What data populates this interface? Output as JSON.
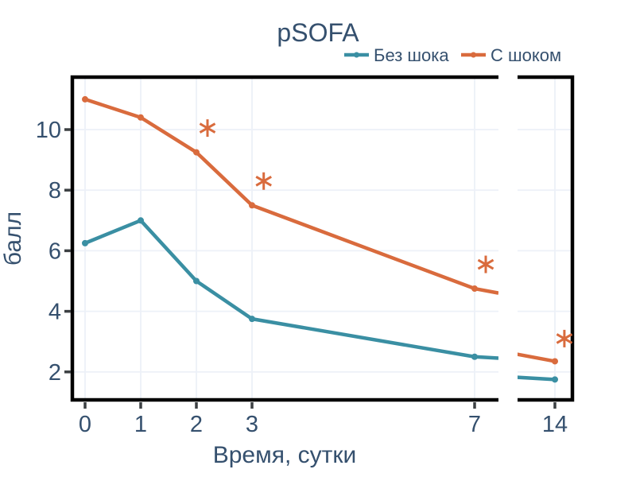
{
  "chart_data": {
    "type": "line",
    "title": "pSOFA",
    "xlabel": "Время, сутки",
    "ylabel": "балл",
    "x": [
      0,
      1,
      2,
      3,
      7,
      14
    ],
    "x_tick_labels": [
      "0",
      "1",
      "2",
      "3",
      "7",
      "14"
    ],
    "y_ticks": [
      2,
      4,
      6,
      8,
      10
    ],
    "y_tick_labels": [
      "2",
      "4",
      "6",
      "8",
      "10"
    ],
    "ylim": [
      1.1,
      11.8
    ],
    "grid": true,
    "legend_position": "top-right",
    "axis_break": {
      "between": [
        7,
        14
      ]
    },
    "series": [
      {
        "name": "Без шока",
        "color": "#3a8fa3",
        "values": [
          6.25,
          7.0,
          5.0,
          3.75,
          2.5,
          1.75
        ]
      },
      {
        "name": "С шоком",
        "color": "#d96b3d",
        "values": [
          11.0,
          10.4,
          9.25,
          7.5,
          4.75,
          2.35
        ]
      }
    ],
    "annotations": [
      {
        "marker": "asterisk",
        "x": 2.2,
        "y": 10.05
      },
      {
        "marker": "asterisk",
        "x": 3.21,
        "y": 8.3
      },
      {
        "marker": "asterisk",
        "x": 7.2,
        "y": 5.55
      },
      {
        "marker": "asterisk",
        "x": 14.17,
        "y": 3.1
      }
    ]
  },
  "theme": {
    "text_color": "#35506e",
    "grid_color": "#edf1f8",
    "axis_color": "#000000",
    "tick_color": "#3c4043",
    "annotation_color": "#d96b3d",
    "background": "#ffffff"
  }
}
